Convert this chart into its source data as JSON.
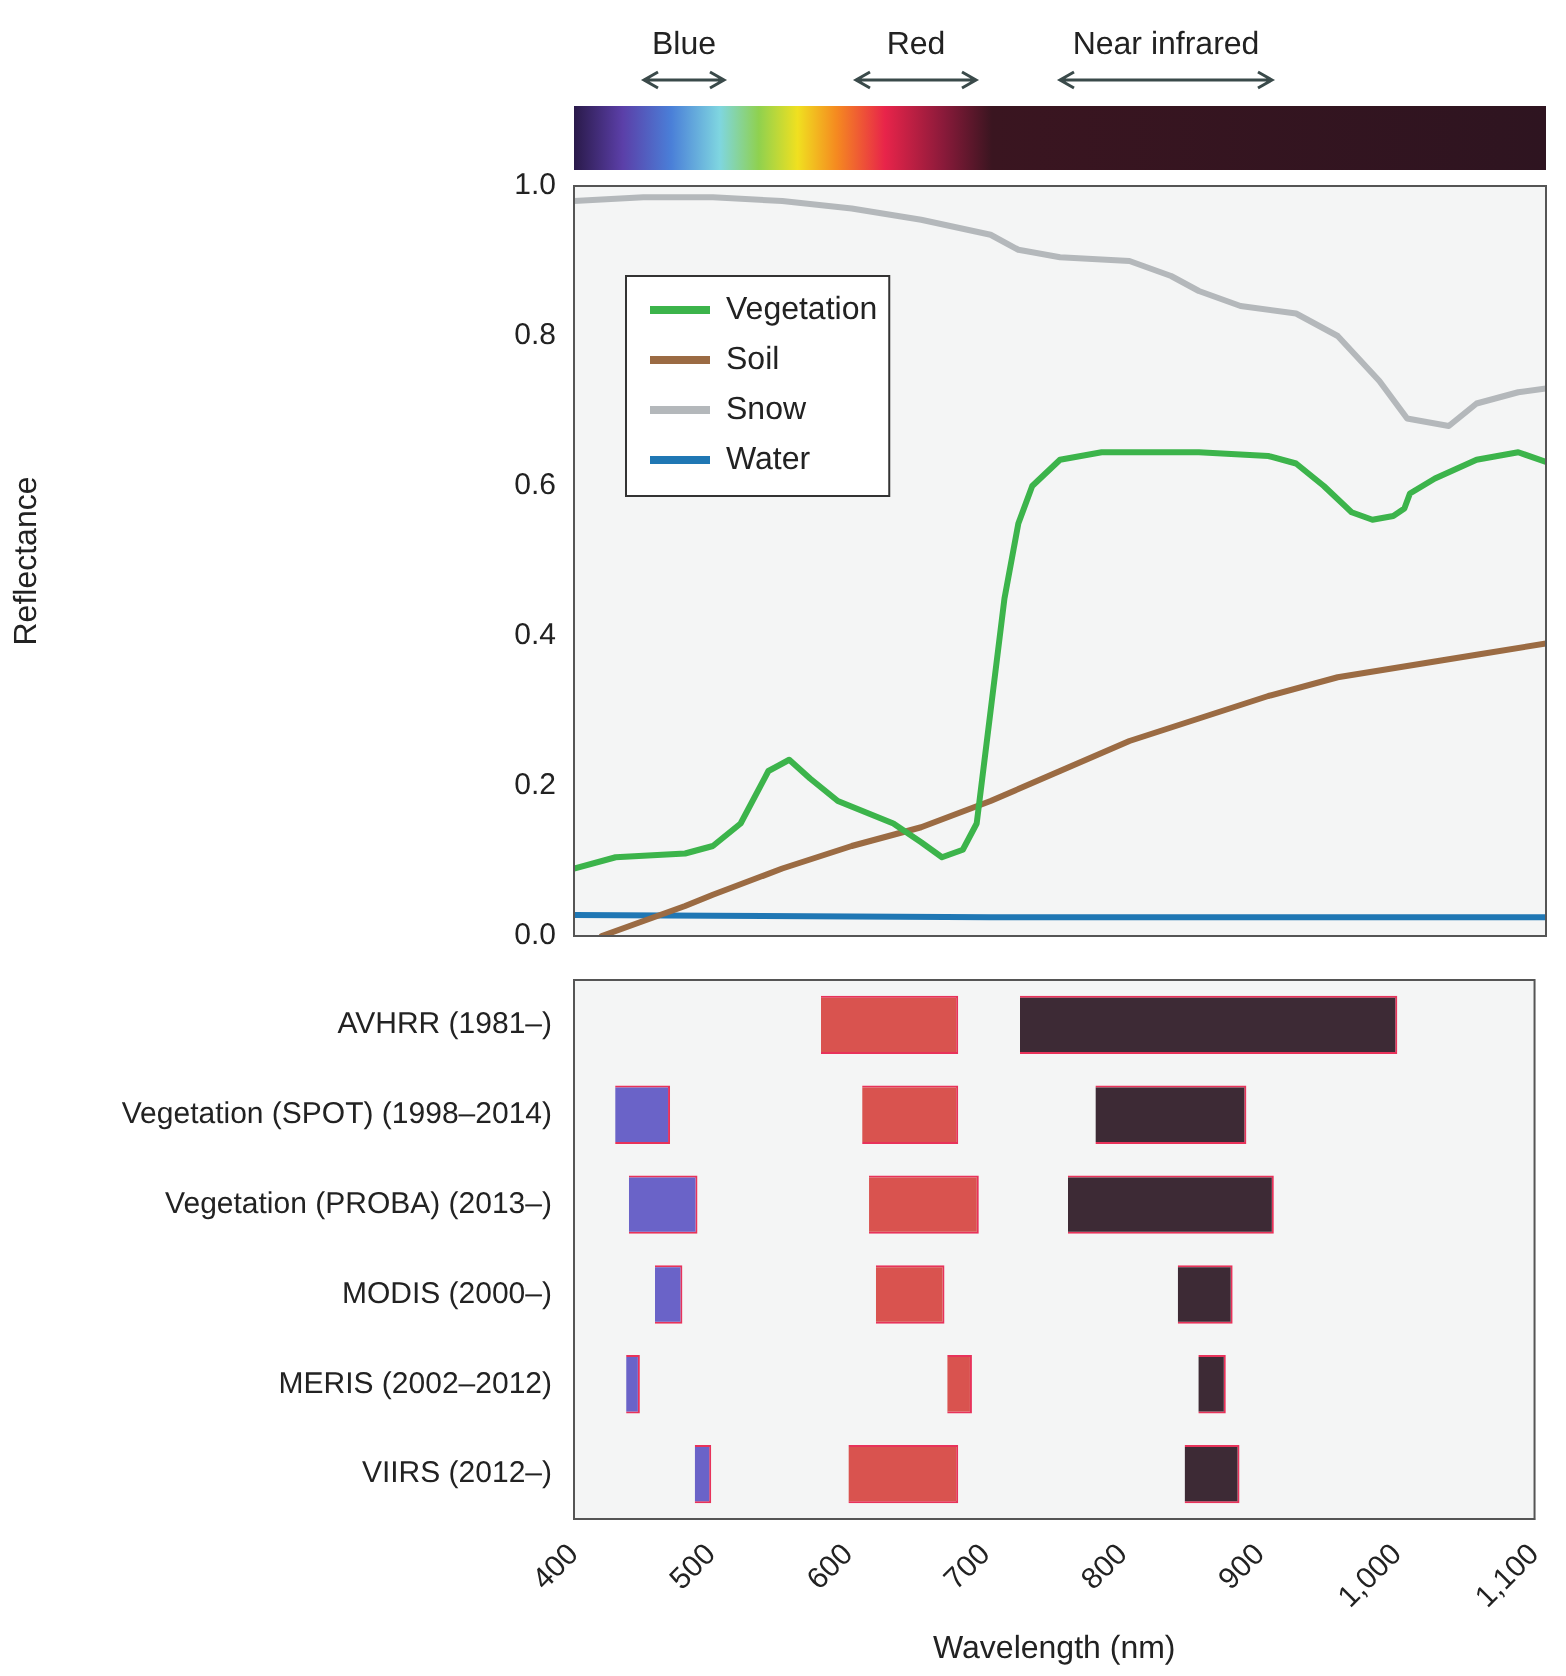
{
  "chart_data": [
    {
      "type": "line",
      "ylabel": "Reflectance",
      "xlim": [
        400,
        1100
      ],
      "ylim": [
        0,
        1
      ],
      "yticks": [
        {
          "value": 0,
          "label": "0.0"
        },
        0.2,
        0.4,
        0.6,
        0.8,
        {
          "value": 1,
          "label": "1.0"
        }
      ],
      "tick_labels": "y",
      "legend": "top left",
      "grid": false,
      "marker": "none",
      "annotations": [
        "Blue",
        "Red",
        "Near infrared"
      ],
      "series": [
        {
          "name": "Vegetation",
          "color": "#3cb44b",
          "x": [
            400,
            430,
            480,
            500,
            520,
            540,
            555,
            570,
            590,
            610,
            630,
            650,
            665,
            680,
            690,
            700,
            710,
            720,
            730,
            750,
            780,
            850,
            900,
            920,
            940,
            960,
            975,
            990,
            998,
            1002,
            1020,
            1050,
            1080,
            1100
          ],
          "values": [
            0.09,
            0.105,
            0.11,
            0.12,
            0.15,
            0.22,
            0.235,
            0.21,
            0.18,
            0.165,
            0.15,
            0.125,
            0.105,
            0.115,
            0.15,
            0.3,
            0.45,
            0.55,
            0.6,
            0.635,
            0.645,
            0.645,
            0.64,
            0.63,
            0.6,
            0.565,
            0.555,
            0.56,
            0.57,
            0.59,
            0.61,
            0.635,
            0.645,
            0.632
          ]
        },
        {
          "name": "Soil",
          "color": "#9b6b43",
          "x": [
            420,
            450,
            480,
            500,
            550,
            600,
            650,
            700,
            750,
            800,
            850,
            900,
            950,
            1000,
            1050,
            1100
          ],
          "values": [
            0,
            0.02,
            0.04,
            0.055,
            0.09,
            0.12,
            0.145,
            0.18,
            0.22,
            0.26,
            0.29,
            0.32,
            0.345,
            0.36,
            0.375,
            0.39
          ]
        },
        {
          "name": "Snow",
          "color": "#b4b8bb",
          "x": [
            400,
            450,
            500,
            550,
            600,
            650,
            700,
            720,
            750,
            800,
            830,
            850,
            880,
            920,
            950,
            980,
            1000,
            1030,
            1050,
            1080,
            1100
          ],
          "values": [
            0.98,
            0.985,
            0.985,
            0.98,
            0.97,
            0.955,
            0.935,
            0.915,
            0.905,
            0.9,
            0.88,
            0.86,
            0.84,
            0.83,
            0.8,
            0.74,
            0.69,
            0.68,
            0.71,
            0.725,
            0.73
          ]
        },
        {
          "name": "Water",
          "color": "#1f77b4",
          "x": [
            400,
            500,
            700,
            900,
            1100
          ],
          "values": [
            0.028,
            0.027,
            0.025,
            0.025,
            0.025
          ]
        }
      ]
    },
    {
      "type": "bar",
      "orientation": "horizontal",
      "xlabel": "Wavelength (nm)",
      "xlim": [
        400,
        1100
      ],
      "xticks": [
        400,
        500,
        600,
        700,
        800,
        900,
        {
          "value": 1000,
          "label": "1,000"
        },
        {
          "value": 1100,
          "label": "1,100"
        }
      ],
      "grid": false,
      "categories": [
        "AVHRR (1981–)",
        "Vegetation (SPOT) (1998–2014)",
        "Vegetation (PROBA) (2013–)",
        "MODIS (2000–)",
        "MERIS (2002–2012)",
        "VIIRS (2012–)"
      ],
      "series": [
        {
          "color": "#6a63c8",
          "base": [
            null,
            430,
            440,
            459,
            438,
            488
          ],
          "values": [
            null,
            40,
            50,
            20,
            10,
            12
          ]
        },
        {
          "color": "#d9534f",
          "base": [
            580,
            610,
            615,
            620,
            672,
            600
          ],
          "values": [
            100,
            70,
            80,
            50,
            18,
            80
          ]
        },
        {
          "color": "#3d2a35",
          "base": [
            725,
            780,
            760,
            840,
            855,
            845
          ],
          "values": [
            275,
            110,
            150,
            40,
            20,
            40
          ]
        }
      ]
    }
  ]
}
